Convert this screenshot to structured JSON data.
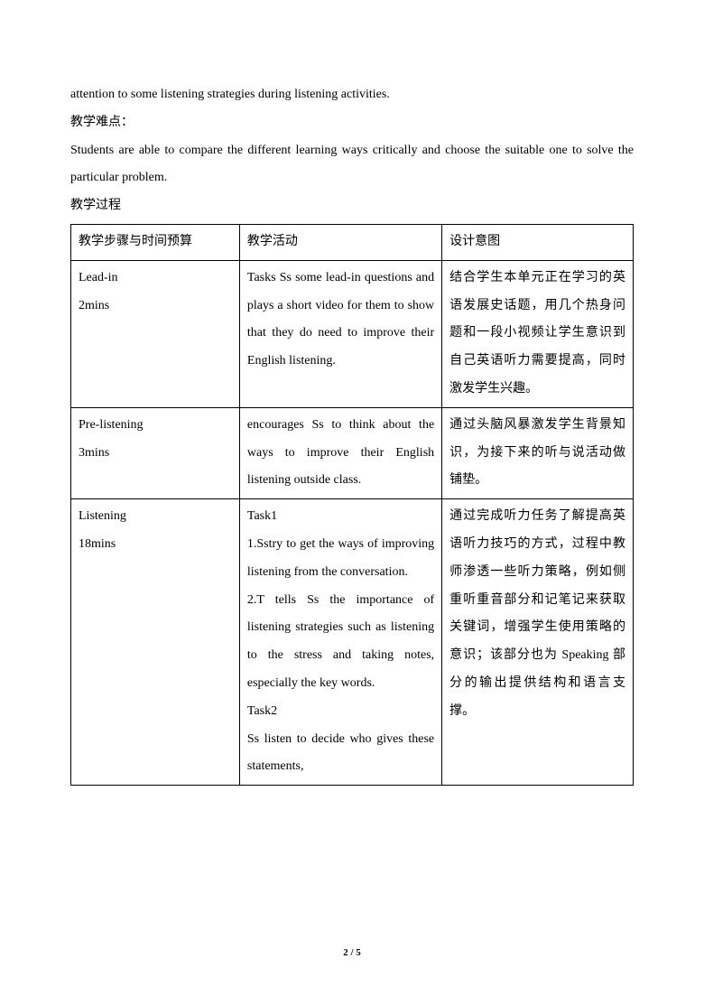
{
  "paragraphs": {
    "p1": "attention to some listening strategies during listening activities.",
    "p2": "教学难点：",
    "p3": "Students are able to compare the different learning ways critically and choose the suitable one to solve the particular problem.",
    "p4": "教学过程"
  },
  "table": {
    "header": {
      "c1": "教学步骤与时间预算",
      "c2": "教学活动",
      "c3": "设计意图"
    },
    "rows": [
      {
        "c1a": "Lead-in",
        "c1b": "2mins",
        "c2": "Tasks Ss some lead-in questions and plays a short video for them to show that they do need to improve their English listening.",
        "c3": "结合学生本单元正在学习的英语发展史话题，用几个热身问题和一段小视频让学生意识到自己英语听力需要提高，同时激发学生兴趣。"
      },
      {
        "c1a": "Pre-listening",
        "c1b": "3mins",
        "c2": "encourages Ss to think about the ways to improve their English listening outside class.",
        "c3": "通过头脑风暴激发学生背景知识，为接下来的听与说活动做铺垫。"
      },
      {
        "c1a": "Listening",
        "c1b": "18mins",
        "c2a": "Task1",
        "c2b": "1.Sstry to get the ways of improving listening from the conversation.",
        "c2c": "2.T tells Ss the importance of listening strategies such as listening to the stress and taking notes, especially the key words.",
        "c2d": "Task2",
        "c2e": "Ss listen to decide who gives these statements,",
        "c3": "通过完成听力任务了解提高英语听力技巧的方式，过程中教师渗透一些听力策略，例如侧重听重音部分和记笔记来获取关键词，增强学生使用策略的意识；该部分也为 Speaking 部分的输出提供结构和语言支撑。"
      }
    ]
  },
  "footer": "2 / 5"
}
